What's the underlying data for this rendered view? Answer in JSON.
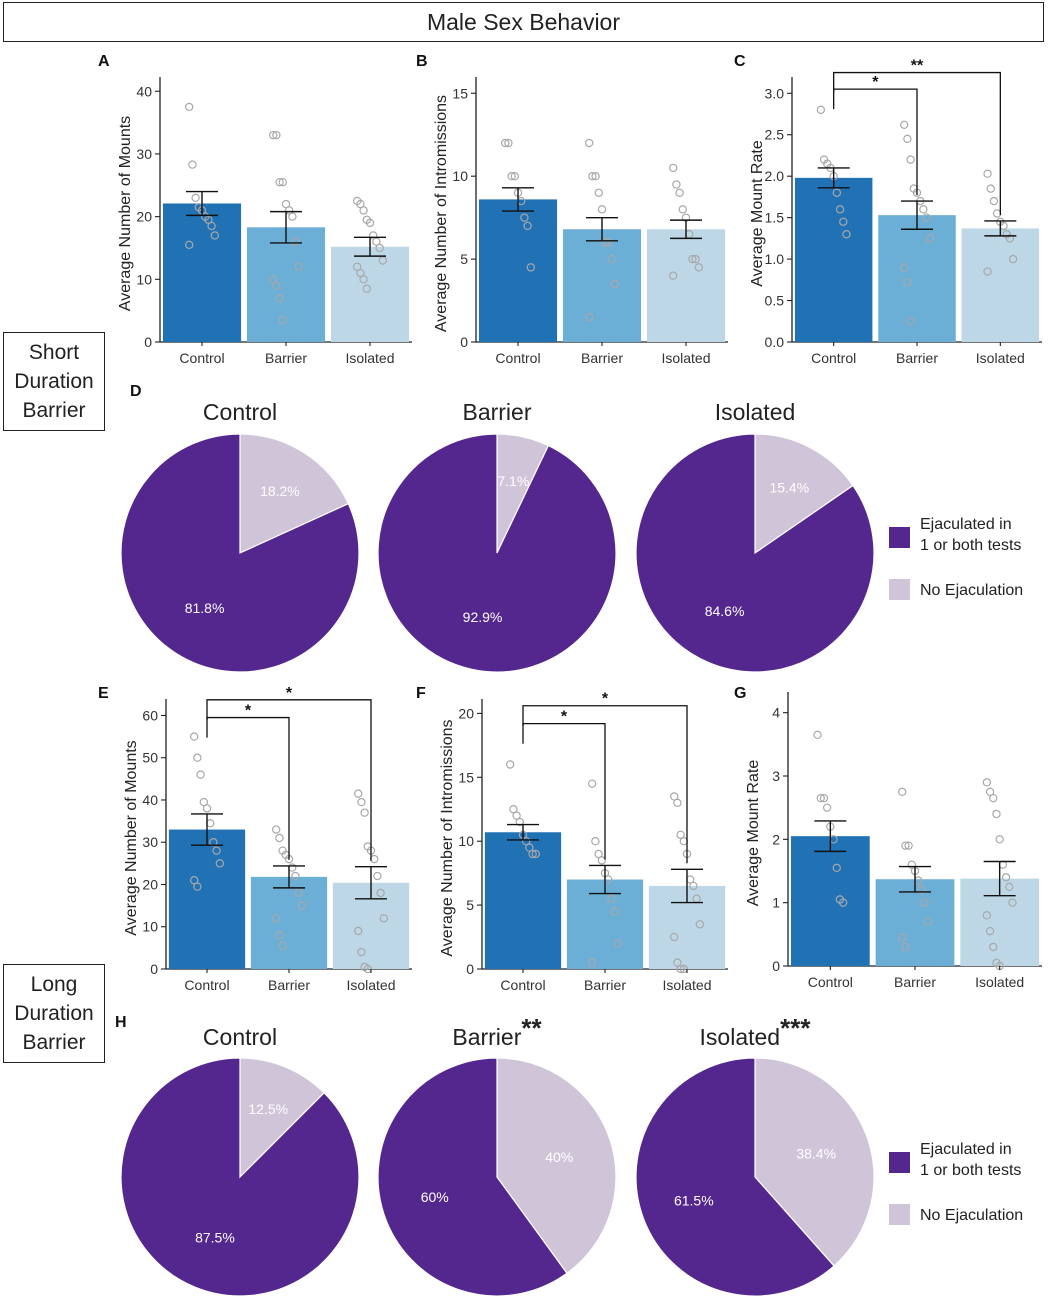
{
  "title": "Male Sex Behavior",
  "row_labels": {
    "short": [
      "Short",
      "Duration",
      "Barrier"
    ],
    "long": [
      "Long",
      "Duration",
      "Barrier"
    ]
  },
  "colors": {
    "control_bar": "#2171b5",
    "barrier_bar": "#6baed6",
    "isolated_bar": "#bdd7e7",
    "ejaculated": "#54278f",
    "no_ejaculation": "#cfc4d8",
    "point": "#a8a8a8"
  },
  "chart_data": [
    {
      "type": "bar",
      "panel": "A",
      "ylabel": "Average Number of Mounts",
      "categories": [
        "Control",
        "Barrier",
        "Isolated"
      ],
      "values": [
        22.1,
        18.3,
        15.2
      ],
      "errors": [
        1.9,
        2.5,
        1.5
      ],
      "ylim": [
        0,
        41
      ],
      "yticks": [
        0,
        10,
        20,
        30,
        40
      ],
      "points": [
        [
          37.5,
          28.3,
          23,
          21.5,
          21,
          20,
          19.5,
          18.5,
          17,
          15.5
        ],
        [
          33,
          33,
          25.5,
          25.5,
          22,
          21,
          20,
          16,
          12,
          10,
          9,
          7,
          3.5
        ],
        [
          22.5,
          22,
          21,
          19.5,
          19,
          17,
          16,
          15,
          13,
          12,
          11,
          10,
          8.5
        ]
      ],
      "significance": []
    },
    {
      "type": "bar",
      "panel": "B",
      "ylabel": "Average Number of Intromissions",
      "categories": [
        "Control",
        "Barrier",
        "Isolated"
      ],
      "values": [
        8.6,
        6.8,
        6.8
      ],
      "errors": [
        0.7,
        0.7,
        0.55
      ],
      "ylim": [
        0,
        15.5
      ],
      "yticks": [
        0,
        5,
        10,
        15
      ],
      "points": [
        [
          12,
          12,
          10,
          10,
          9,
          8.5,
          7.5,
          7,
          4.5
        ],
        [
          12,
          10,
          10,
          9,
          8,
          6,
          6,
          5,
          3.5,
          1.5
        ],
        [
          10.5,
          9.5,
          9,
          8,
          7.5,
          6.5,
          5,
          5,
          4.5,
          4
        ]
      ],
      "significance": []
    },
    {
      "type": "bar",
      "panel": "C",
      "ylabel": "Average Mount Rate",
      "categories": [
        "Control",
        "Barrier",
        "Isolated"
      ],
      "values": [
        1.98,
        1.53,
        1.37
      ],
      "errors": [
        0.12,
        0.17,
        0.09
      ],
      "ylim": [
        0,
        3.1
      ],
      "yticks": [
        "0.0",
        "0.5",
        "1.0",
        "1.5",
        "2.0",
        "2.5",
        "3.0"
      ],
      "points": [
        [
          2.8,
          2.2,
          2.15,
          2.1,
          2.0,
          1.8,
          1.6,
          1.45,
          1.3
        ],
        [
          2.62,
          2.45,
          2.2,
          1.85,
          1.8,
          1.7,
          1.6,
          1.5,
          1.25,
          0.9,
          0.72,
          0.25
        ],
        [
          2.03,
          1.85,
          1.7,
          1.55,
          1.45,
          1.4,
          1.3,
          1.25,
          1.0,
          0.85
        ]
      ],
      "significance": [
        {
          "from": 0,
          "to": 1,
          "label": "*",
          "y": 3.05
        },
        {
          "from": 0,
          "to": 2,
          "label": "**",
          "y": 3.25
        }
      ]
    },
    {
      "type": "pie",
      "panel": "D",
      "group": "Control",
      "title": "Control",
      "slices": [
        {
          "label": "No Ejaculation",
          "value": 18.2,
          "text": "18.2%"
        },
        {
          "label": "Ejaculated in 1 or both tests",
          "value": 81.8,
          "text": "81.8%"
        }
      ]
    },
    {
      "type": "pie",
      "panel": "D",
      "group": "Barrier",
      "title": "Barrier",
      "slices": [
        {
          "label": "No Ejaculation",
          "value": 7.1,
          "text": "7.1%"
        },
        {
          "label": "Ejaculated in 1 or both tests",
          "value": 92.9,
          "text": "92.9%"
        }
      ]
    },
    {
      "type": "pie",
      "panel": "D",
      "group": "Isolated",
      "title": "Isolated",
      "slices": [
        {
          "label": "No Ejaculation",
          "value": 15.4,
          "text": "15.4%"
        },
        {
          "label": "Ejaculated in 1 or both tests",
          "value": 84.6,
          "text": "84.6%"
        }
      ]
    },
    {
      "type": "bar",
      "panel": "E",
      "ylabel": "Average Number of Mounts",
      "categories": [
        "Control",
        "Barrier",
        "Isolated"
      ],
      "values": [
        33,
        21.8,
        20.4
      ],
      "errors": [
        3.7,
        2.6,
        3.8
      ],
      "ylim": [
        0,
        62
      ],
      "yticks": [
        0,
        10,
        20,
        30,
        40,
        50,
        60
      ],
      "points": [
        [
          55,
          50,
          46,
          39.5,
          38,
          34.5,
          30,
          28,
          25,
          21,
          19.5
        ],
        [
          33,
          31,
          28,
          27,
          26,
          24,
          22,
          18,
          15,
          12,
          8,
          5.5
        ],
        [
          41.5,
          39.5,
          37,
          29,
          28,
          26,
          22,
          18,
          12,
          9,
          4,
          0.5,
          0
        ]
      ],
      "significance": [
        {
          "from": 0,
          "to": 1,
          "label": "*",
          "y": 59.5
        },
        {
          "from": 0,
          "to": 2,
          "label": "*",
          "y": 63.7
        }
      ]
    },
    {
      "type": "bar",
      "panel": "F",
      "ylabel": "Average Number of Intromissions",
      "categories": [
        "Control",
        "Barrier",
        "Isolated"
      ],
      "values": [
        10.7,
        7.0,
        6.5
      ],
      "errors": [
        0.6,
        1.1,
        1.3
      ],
      "ylim": [
        0,
        20.5
      ],
      "yticks": [
        0,
        5,
        10,
        15,
        20
      ],
      "points": [
        [
          16,
          12.5,
          12,
          11.5,
          10.5,
          10,
          9.5,
          9,
          9
        ],
        [
          14.5,
          10,
          9,
          8.5,
          7.5,
          7,
          5.5,
          4.5,
          2,
          0.5
        ],
        [
          13.5,
          13,
          10.5,
          10,
          9,
          7,
          6.5,
          5.5,
          3.5,
          2.5,
          0.5,
          0,
          0
        ]
      ],
      "significance": [
        {
          "from": 0,
          "to": 1,
          "label": "*",
          "y": 19.2
        },
        {
          "from": 0,
          "to": 2,
          "label": "*",
          "y": 20.6
        }
      ]
    },
    {
      "type": "bar",
      "panel": "G",
      "ylabel": "Average Mount Rate",
      "categories": [
        "Control",
        "Barrier",
        "Isolated"
      ],
      "values": [
        2.05,
        1.37,
        1.38
      ],
      "errors": [
        0.24,
        0.2,
        0.27
      ],
      "ylim": [
        0,
        4.2
      ],
      "yticks": [
        0,
        1,
        2,
        3,
        4
      ],
      "points": [
        [
          3.65,
          2.65,
          2.65,
          2.5,
          2.2,
          2.0,
          1.55,
          1.05,
          1.0
        ],
        [
          2.75,
          1.9,
          1.9,
          1.6,
          1.5,
          1.35,
          1.2,
          1.0,
          0.7,
          0.45,
          0.3
        ],
        [
          2.9,
          2.75,
          2.65,
          2.4,
          2.0,
          1.6,
          1.4,
          1.25,
          1.0,
          0.8,
          0.55,
          0.3,
          0.05,
          0
        ]
      ],
      "significance": []
    },
    {
      "type": "pie",
      "panel": "H",
      "group": "Control",
      "title": "Control",
      "title_suffix": "",
      "slices": [
        {
          "label": "No Ejaculation",
          "value": 12.5,
          "text": "12.5%"
        },
        {
          "label": "Ejaculated in 1 or both tests",
          "value": 87.5,
          "text": "87.5%"
        }
      ]
    },
    {
      "type": "pie",
      "panel": "H",
      "group": "Barrier",
      "title": "Barrier",
      "title_suffix": "**",
      "slices": [
        {
          "label": "No Ejaculation",
          "value": 40,
          "text": "40%"
        },
        {
          "label": "Ejaculated in 1 or both tests",
          "value": 60,
          "text": "60%"
        }
      ]
    },
    {
      "type": "pie",
      "panel": "H",
      "group": "Isolated",
      "title": "Isolated",
      "title_suffix": "***",
      "slices": [
        {
          "label": "No Ejaculation",
          "value": 38.4,
          "text": "38.4%"
        },
        {
          "label": "Ejaculated in 1 or both tests",
          "value": 61.5,
          "text": "61.5%"
        }
      ]
    }
  ],
  "pie_legend": [
    {
      "line1": "Ejaculated in",
      "line2": "1 or both tests",
      "key": "ejaculated"
    },
    {
      "line1": "No Ejaculation",
      "line2": "",
      "key": "no_ejaculation"
    }
  ]
}
